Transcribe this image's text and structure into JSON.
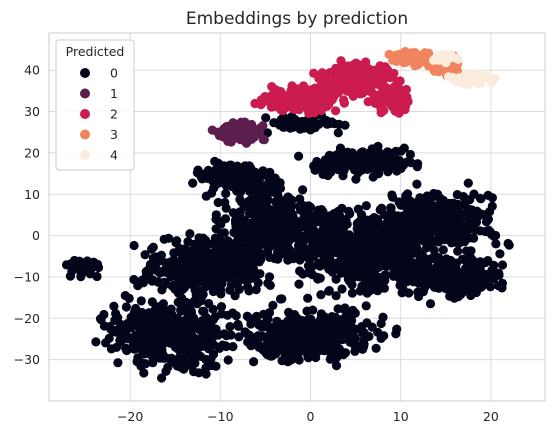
{
  "chart_data": {
    "type": "scatter",
    "title": "Embeddings by prediction",
    "xlabel": "",
    "ylabel": "",
    "xlim": [
      -29,
      26
    ],
    "ylim": [
      -40,
      49
    ],
    "x_ticks": [
      -20,
      -10,
      0,
      10,
      20
    ],
    "y_ticks": [
      -30,
      -20,
      -10,
      0,
      10,
      20,
      30,
      40
    ],
    "x_tick_labels": [
      "−20",
      "−10",
      "0",
      "10",
      "20"
    ],
    "y_tick_labels": [
      "−30",
      "−20",
      "−10",
      "0",
      "10",
      "20",
      "30",
      "40"
    ],
    "grid": true,
    "legend": {
      "title": "Predicted",
      "placement": "top-left",
      "entries": [
        "0",
        "1",
        "2",
        "3",
        "4"
      ]
    },
    "colors": {
      "0": "#03051a",
      "1": "#5c1e4f",
      "2": "#cb1b4f",
      "3": "#f0845e",
      "4": "#faebdd"
    },
    "series": [
      {
        "name": "0",
        "regions": [
          {
            "cx": -16,
            "cy": -24,
            "rx": 9,
            "ry": 11,
            "n": 420
          },
          {
            "cx": -12,
            "cy": -8,
            "rx": 9,
            "ry": 10,
            "n": 360
          },
          {
            "cx": -4,
            "cy": 2,
            "rx": 9,
            "ry": 12,
            "n": 420
          },
          {
            "cx": 6,
            "cy": -4,
            "rx": 10,
            "ry": 14,
            "n": 520
          },
          {
            "cx": 14,
            "cy": 4,
            "rx": 9,
            "ry": 10,
            "n": 320
          },
          {
            "cx": 16,
            "cy": -10,
            "rx": 7,
            "ry": 7,
            "n": 220
          },
          {
            "cx": 0,
            "cy": -24,
            "rx": 11,
            "ry": 9,
            "n": 380
          },
          {
            "cx": -8,
            "cy": 14,
            "rx": 6,
            "ry": 5,
            "n": 140
          },
          {
            "cx": 6,
            "cy": 18,
            "rx": 8,
            "ry": 5,
            "n": 160
          },
          {
            "cx": -1,
            "cy": 27,
            "rx": 6,
            "ry": 3,
            "n": 60
          },
          {
            "cx": -25,
            "cy": -8,
            "rx": 3,
            "ry": 3,
            "n": 40
          }
        ]
      },
      {
        "name": "1",
        "regions": [
          {
            "cx": -8,
            "cy": 25,
            "rx": 3.5,
            "ry": 3,
            "n": 160
          }
        ]
      },
      {
        "name": "2",
        "regions": [
          {
            "cx": -1,
            "cy": 33,
            "rx": 6,
            "ry": 4,
            "n": 260
          },
          {
            "cx": 5,
            "cy": 38,
            "rx": 6,
            "ry": 5,
            "n": 240
          },
          {
            "cx": 9,
            "cy": 33,
            "rx": 3,
            "ry": 4,
            "n": 90
          }
        ]
      },
      {
        "name": "3",
        "regions": [
          {
            "cx": 11,
            "cy": 43,
            "rx": 3,
            "ry": 2,
            "n": 70
          },
          {
            "cx": 15,
            "cy": 41,
            "rx": 2,
            "ry": 3,
            "n": 50
          }
        ]
      },
      {
        "name": "4",
        "regions": [
          {
            "cx": 18,
            "cy": 38,
            "rx": 3,
            "ry": 2,
            "n": 60
          },
          {
            "cx": 15,
            "cy": 43,
            "rx": 2,
            "ry": 1.5,
            "n": 20
          }
        ]
      }
    ]
  }
}
